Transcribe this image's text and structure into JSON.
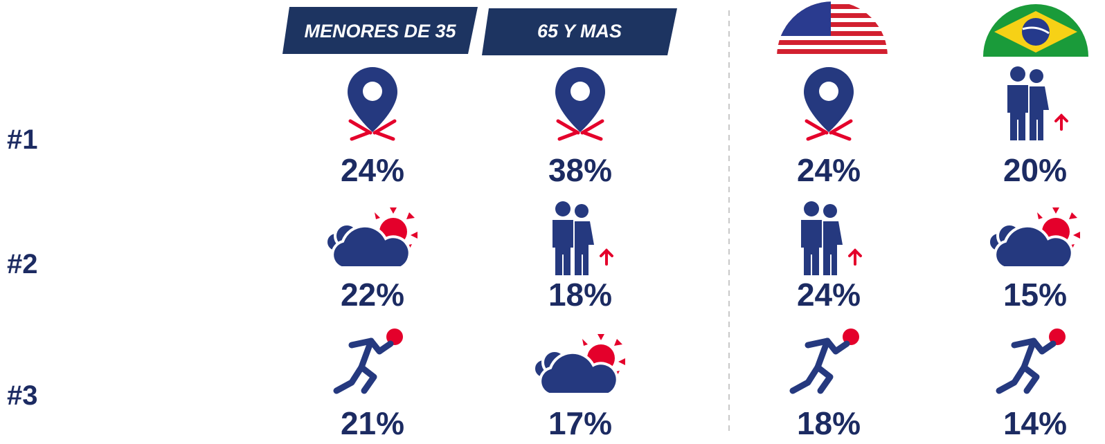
{
  "headers": [
    "MENORES DE 35",
    "65 Y MAS"
  ],
  "rows": [
    {
      "rank": "#1",
      "cells": [
        "24%",
        "38%",
        "24%",
        "20%"
      ]
    },
    {
      "rank": "#2",
      "cells": [
        "22%",
        "18%",
        "24%",
        "15%"
      ]
    },
    {
      "rank": "#3",
      "cells": [
        "21%",
        "17%",
        "18%",
        "14%"
      ]
    }
  ]
}
